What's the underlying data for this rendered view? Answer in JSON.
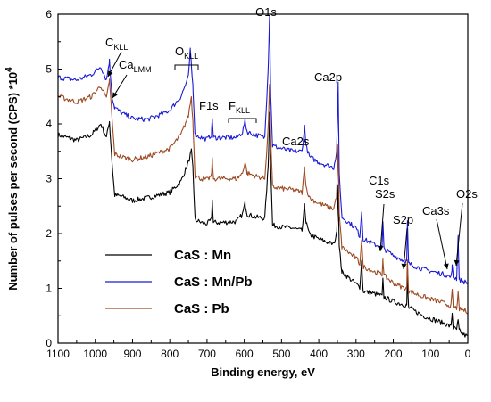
{
  "chart_data": {
    "type": "line",
    "xlabel": "Binding energy, eV",
    "ylabel": "Number of pulses per second (CPS) *10",
    "ylabel_exponent": "4",
    "xlim": [
      1100,
      0
    ],
    "ylim": [
      0,
      6
    ],
    "x_reversed": true,
    "xticks": [
      "1100",
      "1000",
      "900",
      "800",
      "700",
      "600",
      "500",
      "400",
      "300",
      "200",
      "100",
      "0"
    ],
    "yticks": [
      "0",
      "1",
      "2",
      "3",
      "4",
      "5",
      "6"
    ],
    "legend_position": "center",
    "series": [
      {
        "name": "CaS : Mn",
        "color": "#000000",
        "points": [
          [
            1100,
            3.8
          ],
          [
            1050,
            3.7
          ],
          [
            1010,
            3.8
          ],
          [
            985,
            4.0
          ],
          [
            970,
            3.75
          ],
          [
            962,
            4.05
          ],
          [
            955,
            3.3
          ],
          [
            948,
            2.7
          ],
          [
            930,
            2.68
          ],
          [
            900,
            2.6
          ],
          [
            860,
            2.65
          ],
          [
            820,
            2.72
          ],
          [
            800,
            2.75
          ],
          [
            770,
            2.95
          ],
          [
            750,
            3.3
          ],
          [
            742,
            3.5
          ],
          [
            738,
            3.2
          ],
          [
            732,
            2.25
          ],
          [
            715,
            2.2
          ],
          [
            700,
            2.18
          ],
          [
            688,
            2.25
          ],
          [
            686,
            2.6
          ],
          [
            683,
            2.2
          ],
          [
            660,
            2.2
          ],
          [
            620,
            2.22
          ],
          [
            605,
            2.35
          ],
          [
            598,
            2.55
          ],
          [
            592,
            2.35
          ],
          [
            570,
            2.3
          ],
          [
            545,
            2.28
          ],
          [
            536,
            3.2
          ],
          [
            532,
            4.2
          ],
          [
            529,
            3.2
          ],
          [
            524,
            2.15
          ],
          [
            500,
            2.12
          ],
          [
            470,
            2.1
          ],
          [
            445,
            2.05
          ],
          [
            438,
            2.5
          ],
          [
            434,
            2.2
          ],
          [
            425,
            1.98
          ],
          [
            400,
            1.9
          ],
          [
            360,
            1.8
          ],
          [
            352,
            2.0
          ],
          [
            348,
            2.9
          ],
          [
            345,
            1.75
          ],
          [
            338,
            1.3
          ],
          [
            300,
            1.08
          ],
          [
            290,
            1.02
          ],
          [
            285,
            1.5
          ],
          [
            281,
            0.95
          ],
          [
            250,
            0.9
          ],
          [
            230,
            0.86
          ],
          [
            228,
            1.15
          ],
          [
            225,
            0.84
          ],
          [
            200,
            0.76
          ],
          [
            170,
            0.7
          ],
          [
            164,
            0.7
          ],
          [
            162,
            1.2
          ],
          [
            159,
            0.65
          ],
          [
            120,
            0.5
          ],
          [
            60,
            0.35
          ],
          [
            45,
            0.3
          ],
          [
            42,
            0.55
          ],
          [
            39,
            0.28
          ],
          [
            30,
            0.25
          ],
          [
            26,
            0.4
          ],
          [
            23,
            0.23
          ],
          [
            10,
            0.15
          ],
          [
            0,
            0.12
          ]
        ]
      },
      {
        "name": "CaS : Mn/Pb",
        "color": "#1a1ad6",
        "points": [
          [
            1100,
            4.85
          ],
          [
            1050,
            4.8
          ],
          [
            1010,
            4.9
          ],
          [
            985,
            5.05
          ],
          [
            970,
            4.8
          ],
          [
            962,
            5.15
          ],
          [
            955,
            4.5
          ],
          [
            948,
            4.3
          ],
          [
            930,
            4.2
          ],
          [
            900,
            4.1
          ],
          [
            860,
            4.08
          ],
          [
            820,
            4.18
          ],
          [
            800,
            4.25
          ],
          [
            770,
            4.5
          ],
          [
            750,
            4.85
          ],
          [
            745,
            5.35
          ],
          [
            742,
            5.05
          ],
          [
            738,
            4.7
          ],
          [
            732,
            3.8
          ],
          [
            715,
            3.75
          ],
          [
            700,
            3.72
          ],
          [
            688,
            3.8
          ],
          [
            686,
            4.1
          ],
          [
            683,
            3.75
          ],
          [
            660,
            3.75
          ],
          [
            620,
            3.75
          ],
          [
            605,
            3.85
          ],
          [
            598,
            4.05
          ],
          [
            592,
            3.85
          ],
          [
            570,
            3.8
          ],
          [
            545,
            3.75
          ],
          [
            536,
            5.0
          ],
          [
            532,
            6.0
          ],
          [
            529,
            4.5
          ],
          [
            524,
            3.6
          ],
          [
            500,
            3.55
          ],
          [
            470,
            3.5
          ],
          [
            445,
            3.5
          ],
          [
            438,
            3.95
          ],
          [
            434,
            3.6
          ],
          [
            425,
            3.4
          ],
          [
            400,
            3.3
          ],
          [
            360,
            3.2
          ],
          [
            352,
            3.5
          ],
          [
            348,
            4.72
          ],
          [
            345,
            3.1
          ],
          [
            338,
            2.3
          ],
          [
            300,
            2.1
          ],
          [
            290,
            1.95
          ],
          [
            285,
            2.4
          ],
          [
            281,
            1.9
          ],
          [
            250,
            1.8
          ],
          [
            230,
            1.75
          ],
          [
            228,
            2.2
          ],
          [
            225,
            1.72
          ],
          [
            200,
            1.6
          ],
          [
            170,
            1.5
          ],
          [
            164,
            1.5
          ],
          [
            162,
            2.2
          ],
          [
            159,
            1.45
          ],
          [
            120,
            1.35
          ],
          [
            60,
            1.25
          ],
          [
            45,
            1.2
          ],
          [
            42,
            1.4
          ],
          [
            39,
            1.2
          ],
          [
            30,
            1.18
          ],
          [
            26,
            1.95
          ],
          [
            23,
            1.16
          ],
          [
            10,
            1.12
          ],
          [
            0,
            1.1
          ]
        ]
      },
      {
        "name": "CaS : Pb",
        "color": "#9c4a22",
        "points": [
          [
            1100,
            4.5
          ],
          [
            1050,
            4.4
          ],
          [
            1010,
            4.5
          ],
          [
            985,
            4.7
          ],
          [
            970,
            4.45
          ],
          [
            962,
            4.8
          ],
          [
            955,
            4.1
          ],
          [
            948,
            3.45
          ],
          [
            930,
            3.4
          ],
          [
            900,
            3.35
          ],
          [
            860,
            3.4
          ],
          [
            820,
            3.5
          ],
          [
            800,
            3.55
          ],
          [
            770,
            3.8
          ],
          [
            750,
            4.15
          ],
          [
            742,
            4.5
          ],
          [
            738,
            4.05
          ],
          [
            732,
            3.05
          ],
          [
            715,
            3.0
          ],
          [
            700,
            2.98
          ],
          [
            688,
            3.05
          ],
          [
            686,
            3.35
          ],
          [
            683,
            3.0
          ],
          [
            660,
            3.0
          ],
          [
            620,
            3.0
          ],
          [
            605,
            3.1
          ],
          [
            598,
            3.3
          ],
          [
            592,
            3.1
          ],
          [
            570,
            3.05
          ],
          [
            545,
            3.0
          ],
          [
            536,
            3.9
          ],
          [
            532,
            4.75
          ],
          [
            529,
            3.7
          ],
          [
            524,
            2.85
          ],
          [
            500,
            2.82
          ],
          [
            470,
            2.8
          ],
          [
            445,
            2.75
          ],
          [
            438,
            3.2
          ],
          [
            434,
            2.85
          ],
          [
            425,
            2.65
          ],
          [
            400,
            2.55
          ],
          [
            360,
            2.45
          ],
          [
            352,
            2.7
          ],
          [
            348,
            3.6
          ],
          [
            345,
            2.35
          ],
          [
            338,
            1.75
          ],
          [
            300,
            1.55
          ],
          [
            290,
            1.45
          ],
          [
            285,
            1.9
          ],
          [
            281,
            1.4
          ],
          [
            250,
            1.3
          ],
          [
            230,
            1.25
          ],
          [
            228,
            1.55
          ],
          [
            225,
            1.23
          ],
          [
            200,
            1.1
          ],
          [
            170,
            1.0
          ],
          [
            164,
            1.0
          ],
          [
            162,
            1.55
          ],
          [
            159,
            0.95
          ],
          [
            120,
            0.85
          ],
          [
            60,
            0.72
          ],
          [
            45,
            0.68
          ],
          [
            42,
            0.95
          ],
          [
            39,
            0.66
          ],
          [
            30,
            0.64
          ],
          [
            26,
            0.9
          ],
          [
            23,
            0.62
          ],
          [
            10,
            0.6
          ],
          [
            0,
            0.58
          ]
        ]
      }
    ],
    "annotations": [
      {
        "id": "ckll",
        "main": "C",
        "sub": "KLL",
        "x": 990,
        "y": 5.25
      },
      {
        "id": "calmm",
        "main": "Ca",
        "sub": "LMM",
        "x": 958,
        "y": 4.95
      },
      {
        "id": "okll",
        "main": "O",
        "sub": "KLL",
        "x": 780,
        "y": 5.45
      },
      {
        "id": "f1s",
        "main": "F1s",
        "sub": "",
        "x": 685,
        "y": 4.4
      },
      {
        "id": "fkll",
        "main": "F",
        "sub": "KLL",
        "x": 600,
        "y": 4.35
      },
      {
        "id": "o1s",
        "main": "O1s",
        "sub": "",
        "x": 530,
        "y": 6.02
      },
      {
        "id": "ca2p",
        "main": "Ca2p",
        "sub": "",
        "x": 345,
        "y": 4.95
      },
      {
        "id": "ca2s",
        "main": "Ca2s",
        "sub": "",
        "x": 440,
        "y": 4.1
      },
      {
        "id": "c1s",
        "main": "C1s",
        "sub": "",
        "x": 283,
        "y": 2.75
      },
      {
        "id": "s2s",
        "main": "S2s",
        "sub": "",
        "x": 226,
        "y": 2.85
      },
      {
        "id": "s2p",
        "main": "S2p",
        "sub": "",
        "x": 162,
        "y": 2.35
      },
      {
        "id": "ca3s",
        "main": "Ca3s",
        "sub": "",
        "x": 75,
        "y": 2.45
      },
      {
        "id": "o2s",
        "main": "O2s",
        "sub": "",
        "x": 20,
        "y": 2.85
      }
    ]
  }
}
